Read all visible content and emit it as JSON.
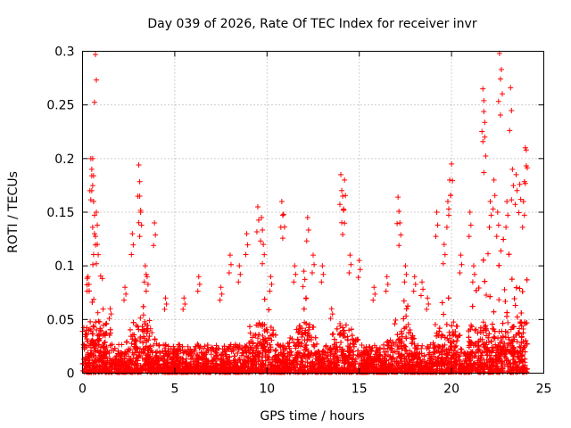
{
  "chart_data": {
    "type": "scatter",
    "title": "Day 039 of 2026, Rate Of TEC Index for receiver invr",
    "xlabel": "GPS time / hours",
    "ylabel": "ROTI / TECUs",
    "xlim": [
      0,
      25
    ],
    "ylim": [
      0,
      0.3
    ],
    "xticks": [
      0,
      5,
      10,
      15,
      20,
      25
    ],
    "yticks": [
      0,
      0.05,
      0.1,
      0.15,
      0.2,
      0.25,
      0.3
    ],
    "xtick_labels": [
      "0",
      "5",
      "10",
      "15",
      "20",
      "25"
    ],
    "ytick_labels": [
      "0",
      "0.05",
      "0.1",
      "0.15",
      "0.2",
      "0.25",
      "0.3"
    ],
    "grid": true,
    "marker": "+",
    "series": [
      {
        "name": "ROTI",
        "color": "#ff0000",
        "x": [
          0.2,
          0.3,
          0.45,
          0.5,
          0.55,
          0.6,
          0.65,
          0.7,
          0.75,
          0.8,
          1.5,
          2.3,
          2.7,
          3.05,
          3.1,
          3.15,
          3.4,
          3.5,
          3.9,
          4.5,
          5.5,
          6.3,
          7.5,
          8.0,
          8.5,
          8.9,
          9.5,
          9.7,
          9.8,
          10.2,
          10.8,
          10.9,
          11.5,
          12.0,
          12.2,
          12.5,
          13.0,
          13.5,
          14.0,
          14.1,
          14.15,
          14.2,
          14.5,
          15.0,
          15.8,
          16.5,
          17.1,
          17.2,
          17.5,
          18.0,
          18.4,
          18.7,
          19.2,
          19.6,
          19.8,
          19.9,
          20.0,
          20.5,
          21.0,
          21.2,
          21.7,
          21.75,
          21.8,
          22.1,
          22.3,
          22.5,
          22.6,
          22.7,
          23.0,
          23.2,
          23.3,
          23.5,
          23.7,
          23.9,
          24.0,
          24.05
        ],
        "y": [
          0.04,
          0.09,
          0.2,
          0.19,
          0.2,
          0.16,
          0.13,
          0.297,
          0.15,
          0.12,
          0.06,
          0.08,
          0.13,
          0.194,
          0.165,
          0.15,
          0.1,
          0.09,
          0.14,
          0.07,
          0.07,
          0.09,
          0.08,
          0.11,
          0.1,
          0.13,
          0.155,
          0.145,
          0.12,
          0.09,
          0.16,
          0.148,
          0.1,
          0.095,
          0.145,
          0.11,
          0.1,
          0.06,
          0.185,
          0.165,
          0.152,
          0.18,
          0.11,
          0.105,
          0.08,
          0.09,
          0.164,
          0.14,
          0.1,
          0.09,
          0.085,
          0.07,
          0.15,
          0.12,
          0.16,
          0.18,
          0.195,
          0.11,
          0.15,
          0.1,
          0.265,
          0.254,
          0.22,
          0.16,
          0.18,
          0.15,
          0.298,
          0.283,
          0.16,
          0.266,
          0.19,
          0.185,
          0.176,
          0.16,
          0.21,
          0.208
        ]
      }
    ],
    "dense_band": {
      "description_values": "baseline scatter across full day",
      "x_range": [
        0,
        24.1
      ],
      "y_range": [
        0.0,
        0.05
      ]
    }
  }
}
